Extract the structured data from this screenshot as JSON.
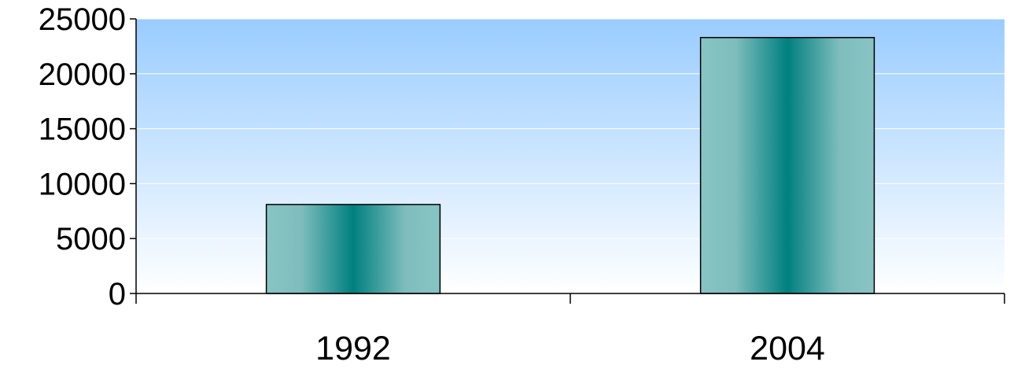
{
  "chart_data": {
    "type": "bar",
    "categories": [
      "1992",
      "2004"
    ],
    "values": [
      8100,
      23300
    ],
    "title": "",
    "xlabel": "",
    "ylabel": "",
    "ylim": [
      0,
      25000
    ],
    "y_ticks": [
      0,
      5000,
      10000,
      15000,
      20000,
      25000
    ],
    "y_tick_labels": [
      "0",
      "5000",
      "10000",
      "15000",
      "20000",
      "25000"
    ],
    "grid": true,
    "legend": "none",
    "colors": {
      "plot_background_top": "#99CCFF",
      "plot_background_bottom": "#FFFFFF",
      "bar_edge": "#008080",
      "bar_center": "#008080",
      "bar_light": "#88C4C4",
      "bar_outline": "#000000",
      "gridline": "#FFFFFF",
      "axis": "#000000"
    }
  }
}
